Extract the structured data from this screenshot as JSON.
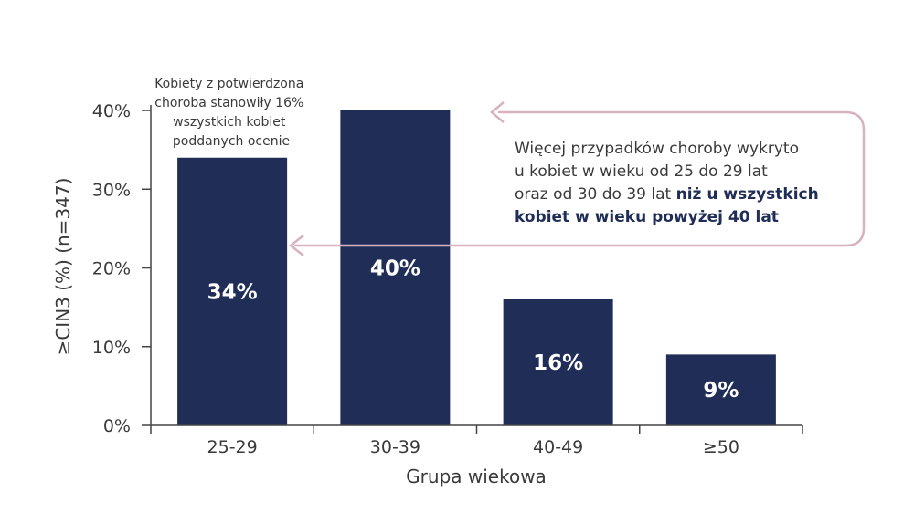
{
  "chart_data": {
    "type": "bar",
    "categories": [
      "25-29",
      "30-39",
      "40-49",
      "≥50"
    ],
    "values": [
      34,
      40,
      16,
      9
    ],
    "value_labels": [
      "34%",
      "40%",
      "16%",
      "9%"
    ],
    "ylim": [
      0,
      40
    ],
    "yticks": [
      0,
      10,
      20,
      30,
      40
    ],
    "ytick_labels": [
      "0%",
      "10%",
      "20%",
      "30%",
      "40%"
    ],
    "xlabel": "Grupa wiekowa",
    "ylabel": "≥CIN3 (%) (n=347)",
    "grid": false,
    "legend": "none",
    "bar_color": "#1f2d57",
    "annotations": {
      "note_lines": [
        "Kobiety z potwierdzona",
        "choroba stanowiły 16%",
        "wszystkich kobiet",
        "poddanych ocenie"
      ],
      "callout": {
        "line1": "Więcej przypadków choroby wykryto",
        "line2": "u kobiet w wieku od 25 do 29 lat",
        "line3_normal": "oraz od 30 do 39 lat ",
        "line3_bold": "niż u wszystkich",
        "line4_bold": "kobiet w wieku powyżej 40 lat"
      },
      "arrow_color": "#d9b2c2"
    }
  }
}
